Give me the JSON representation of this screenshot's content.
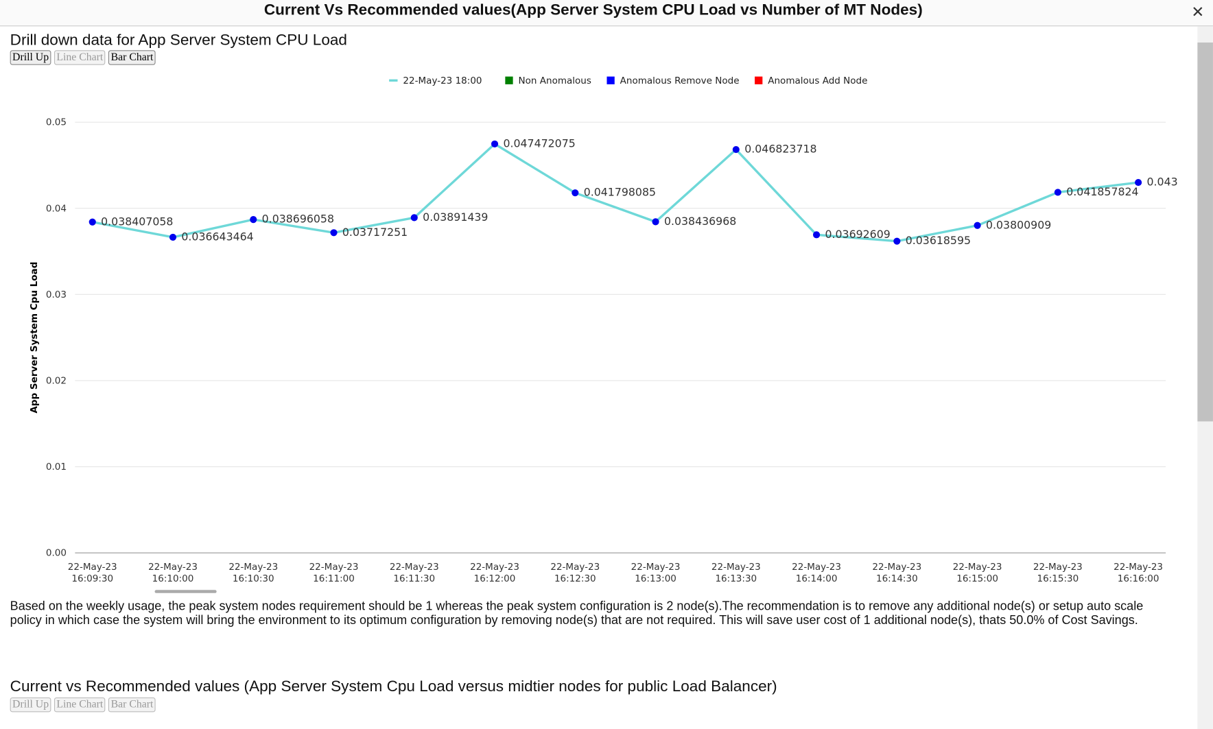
{
  "header": {
    "title": "Current Vs Recommended values(App Server System CPU Load vs Number of MT Nodes)"
  },
  "section1": {
    "title": "Drill down data for App Server System CPU Load",
    "buttons": [
      "Drill Up",
      "Line Chart",
      "Bar Chart"
    ]
  },
  "chart_data": {
    "type": "line",
    "categories": [
      "22-May-23 16:09:30",
      "22-May-23 16:10:00",
      "22-May-23 16:10:30",
      "22-May-23 16:11:00",
      "22-May-23 16:11:30",
      "22-May-23 16:12:00",
      "22-May-23 16:12:30",
      "22-May-23 16:13:00",
      "22-May-23 16:13:30",
      "22-May-23 16:14:00",
      "22-May-23 16:14:30",
      "22-May-23 16:15:00",
      "22-May-23 16:15:30",
      "22-May-23 16:16:00"
    ],
    "series": [
      {
        "name": "22-May-23 18:00",
        "color": "#6ed8d8",
        "marker_color": "#0000ee",
        "values": [
          0.038407058,
          0.036643464,
          0.038696058,
          0.03717251,
          0.03891439,
          0.047472075,
          0.041798085,
          0.038436968,
          0.046823718,
          0.03692609,
          0.03618595,
          0.03800909,
          0.041857824,
          0.043
        ]
      }
    ],
    "legend_items": [
      {
        "name": "Non Anomalous",
        "color": "#008000"
      },
      {
        "name": "Anomalous Remove Node",
        "color": "#0000ff"
      },
      {
        "name": "Anomalous Add Node",
        "color": "#ff0000"
      }
    ],
    "y_label": "App Server System Cpu Load",
    "ylim": [
      0,
      0.05
    ],
    "yticks": [
      {
        "value": 0,
        "label": "0.00"
      },
      0.01,
      0.02,
      0.03,
      0.04,
      0.05
    ],
    "grid": true
  },
  "paragraph": "Based on the weekly usage, the peak system nodes requirement should be 1 whereas the peak system configuration is 2 node(s).The recommendation is to remove any additional node(s) or setup auto scale policy in which case the system will bring the environment to its optimum configuration by removing node(s) that are not required. This will save user cost of 1 additional node(s), thats 50.0% of Cost Savings.",
  "section2": {
    "title": "Current vs Recommended values (App Server System Cpu Load versus midtier nodes for public Load Balancer)",
    "buttons": [
      "Drill Up",
      "Line Chart",
      "Bar Chart"
    ]
  }
}
